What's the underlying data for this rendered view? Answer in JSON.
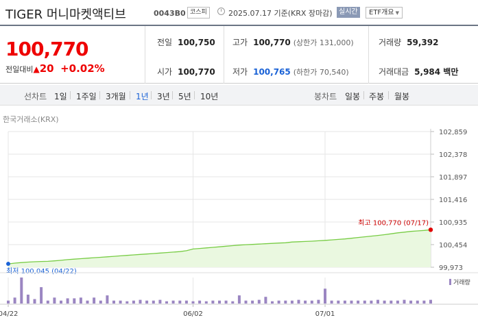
{
  "header": {
    "title": "TIGER 머니마켓액티브",
    "code": "0043B0",
    "market_badge": "코스피",
    "date_text": "2025.07.17  기준(KRX 장마감)",
    "realtime_label": "실시간",
    "etf_info_label": "ETF개요"
  },
  "quote": {
    "price": "100,770",
    "change_label": "전일대비",
    "change_amount": "20",
    "change_percent": "+0.02%",
    "prev_close_label": "전일",
    "prev_close": "100,750",
    "high_label": "고가",
    "high": "100,770",
    "upper_limit": "(상한가 131,000)",
    "volume_label": "거래량",
    "volume": "59,392",
    "open_label": "시가",
    "open": "100,770",
    "low_label": "저가",
    "low": "100,765",
    "lower_limit": "(하한가 70,540)",
    "amount_label": "거래대금",
    "amount": "5,984 백만"
  },
  "period_bar": {
    "line_chart_label": "선차트",
    "ranges": [
      "1일",
      "1주일",
      "3개월",
      "1년",
      "3년",
      "5년",
      "10년"
    ],
    "active_range": "1년",
    "candle_label": "봉차트",
    "candles": [
      "일봉",
      "주봉",
      "월봉"
    ]
  },
  "colors": {
    "up_red": "#e00000",
    "down_blue": "#1a62d6",
    "line_green": "#77cc44",
    "area_fill": "#eaf8e0",
    "volume_bar": "#9b86c2"
  },
  "chart_data": {
    "type": "area",
    "exchange_label": "한국거래소(KRX)",
    "ylim": [
      99973,
      102859
    ],
    "y_ticks": [
      "102,859",
      "102,378",
      "101,897",
      "101,416",
      "100,935",
      "100,454",
      "99,973"
    ],
    "x_tick_labels": [
      "04/22",
      "06/02",
      "07/01"
    ],
    "x_tick_index": [
      0,
      28,
      48
    ],
    "series": [
      {
        "values": [
          100045,
          100060,
          100072,
          100082,
          100090,
          100095,
          100098,
          100108,
          100120,
          100135,
          100145,
          100155,
          100165,
          100175,
          100185,
          100195,
          100205,
          100215,
          100225,
          100235,
          100245,
          100255,
          100265,
          100275,
          100285,
          100295,
          100305,
          100325,
          100360,
          100372,
          100384,
          100396,
          100408,
          100420,
          100432,
          100444,
          100452,
          100459,
          100466,
          100473,
          100480,
          100487,
          100494,
          100510,
          100515,
          100521,
          100527,
          100535,
          100545,
          100555,
          100565,
          100575,
          100590,
          100605,
          100620,
          100635,
          100650,
          100665,
          100685,
          100705,
          100720,
          100735,
          100745,
          100755,
          100770
        ]
      }
    ],
    "high_annotation": "최고  100,770 (07/17)",
    "low_annotation": "최저  100,045 (04/22)",
    "volume": {
      "label": "거래량",
      "values": [
        4,
        8,
        35,
        12,
        6,
        22,
        4,
        8,
        4,
        7,
        7,
        8,
        4,
        8,
        4,
        11,
        4,
        4,
        3,
        4,
        5,
        4,
        4,
        5,
        3,
        4,
        4,
        4,
        3,
        4,
        3,
        4,
        4,
        4,
        3,
        11,
        4,
        4,
        5,
        9,
        3,
        4,
        4,
        4,
        5,
        4,
        4,
        5,
        20,
        4,
        4,
        4,
        4,
        4,
        4,
        4,
        5,
        4,
        4,
        4,
        5,
        4,
        4,
        4,
        5
      ]
    }
  }
}
